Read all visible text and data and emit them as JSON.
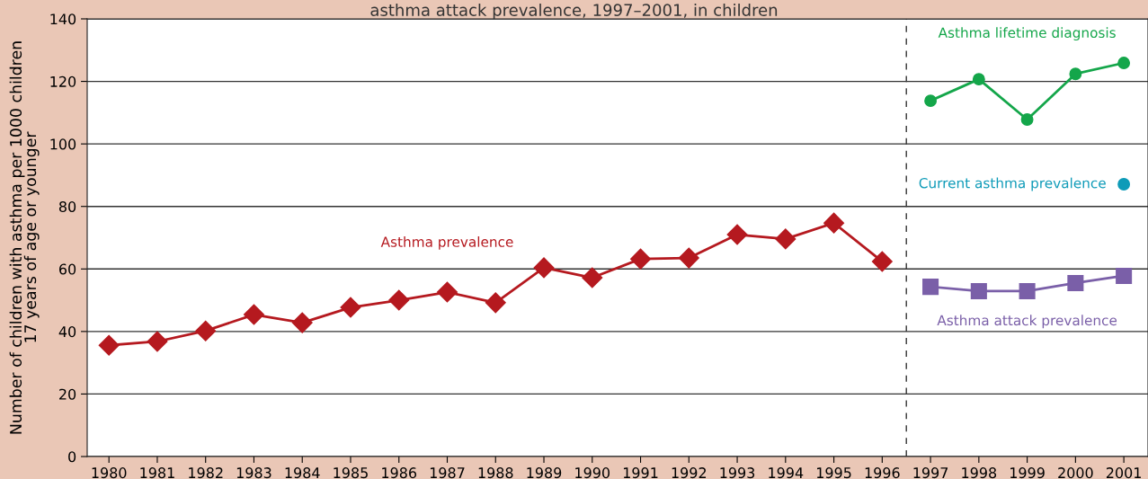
{
  "chart_data": {
    "type": "line",
    "title": "asthma attack prevalence, 1997–2001, in children",
    "ylabel": "Number of children with asthma per 1000 children\n17 years of age or younger",
    "series": [
      {
        "name": "Asthma prevalence",
        "color": "#b5191f",
        "marker": "diamond",
        "x": [
          1980,
          1981,
          1982,
          1983,
          1984,
          1985,
          1986,
          1987,
          1988,
          1989,
          1990,
          1991,
          1992,
          1993,
          1994,
          1995,
          1996
        ],
        "values": [
          35.6,
          36.8,
          40.2,
          45.4,
          42.8,
          47.7,
          50.0,
          52.6,
          49.2,
          60.4,
          57.2,
          63.2,
          63.5,
          71.0,
          69.6,
          74.7,
          62.4
        ]
      },
      {
        "name": "Asthma lifetime diagnosis",
        "color": "#14a64a",
        "marker": "circle",
        "x": [
          1997,
          1998,
          1999,
          2000,
          2001
        ],
        "values": [
          113.8,
          120.7,
          107.8,
          122.4,
          125.9
        ]
      },
      {
        "name": "Current asthma prevalence",
        "color": "#0e9bb8",
        "marker": "circle",
        "x": [
          2001
        ],
        "values": [
          87.1
        ]
      },
      {
        "name": "Asthma attack prevalence",
        "color": "#7a5fa8",
        "marker": "square",
        "x": [
          1997,
          1998,
          1999,
          2000,
          2001
        ],
        "values": [
          54.3,
          52.9,
          52.9,
          55.5,
          57.8
        ]
      }
    ],
    "xlim": [
      1979.55,
      2001.5
    ],
    "xticks": [
      1980,
      1981,
      1982,
      1983,
      1984,
      1985,
      1986,
      1987,
      1988,
      1989,
      1990,
      1991,
      1992,
      1993,
      1994,
      1995,
      1996,
      1997,
      1998,
      1999,
      2000,
      2001
    ],
    "ylim": [
      0,
      140
    ],
    "yticks": [
      0,
      20,
      40,
      60,
      80,
      100,
      120,
      140
    ],
    "grid": "y",
    "ref_lines": [
      {
        "axis": "x",
        "value": 1996.5,
        "color": "#333333",
        "line_style": "dashed"
      }
    ]
  }
}
